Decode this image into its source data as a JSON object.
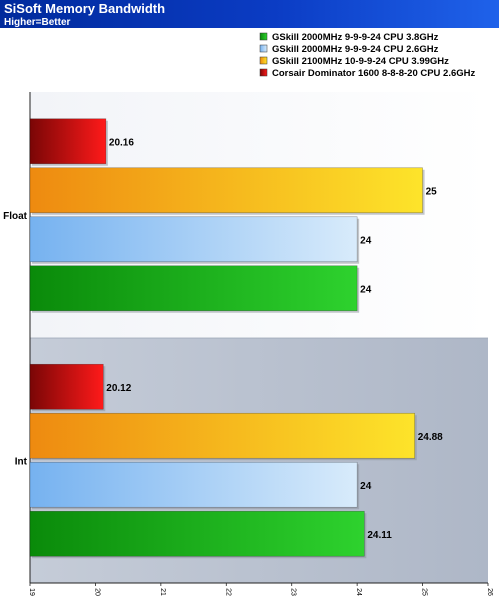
{
  "header": {
    "title": "SiSoft Memory Bandwidth",
    "subtitle": "Higher=Better"
  },
  "chart_data": {
    "type": "bar",
    "orientation": "horizontal",
    "title": "SiSoft Memory Bandwidth",
    "subtitle": "Higher=Better",
    "categories": [
      "Float",
      "Int"
    ],
    "series": [
      {
        "name": "GSkill 2000MHz 9-9-9-24 CPU 3.8GHz",
        "color": "#18a018",
        "values": [
          24,
          24.11
        ],
        "labels": [
          "24",
          "24.11"
        ]
      },
      {
        "name": "GSkill 2000MHz 9-9-9-24 CPU 2.6GHz",
        "color": "#8cc4f4",
        "values": [
          24,
          24
        ],
        "labels": [
          "24",
          "24"
        ]
      },
      {
        "name": "GSkill 2100MHz 10-9-9-24 CPU 3.99GHz",
        "color": "#f5a21c",
        "values": [
          25,
          24.88
        ],
        "labels": [
          "25",
          "24.88"
        ]
      },
      {
        "name": "Corsair Dominator 1600 8-8-8-20 CPU 2.6GHz",
        "color": "#b01010",
        "values": [
          20.16,
          20.12
        ],
        "labels": [
          "20.16",
          "20.12"
        ]
      }
    ],
    "legend_order": [
      0,
      1,
      2,
      3
    ],
    "xlim": [
      19,
      26
    ],
    "xticks": [
      "19",
      "20",
      "21",
      "22",
      "23",
      "24",
      "25",
      "26"
    ],
    "legend_position": "top-right",
    "grid": false
  }
}
